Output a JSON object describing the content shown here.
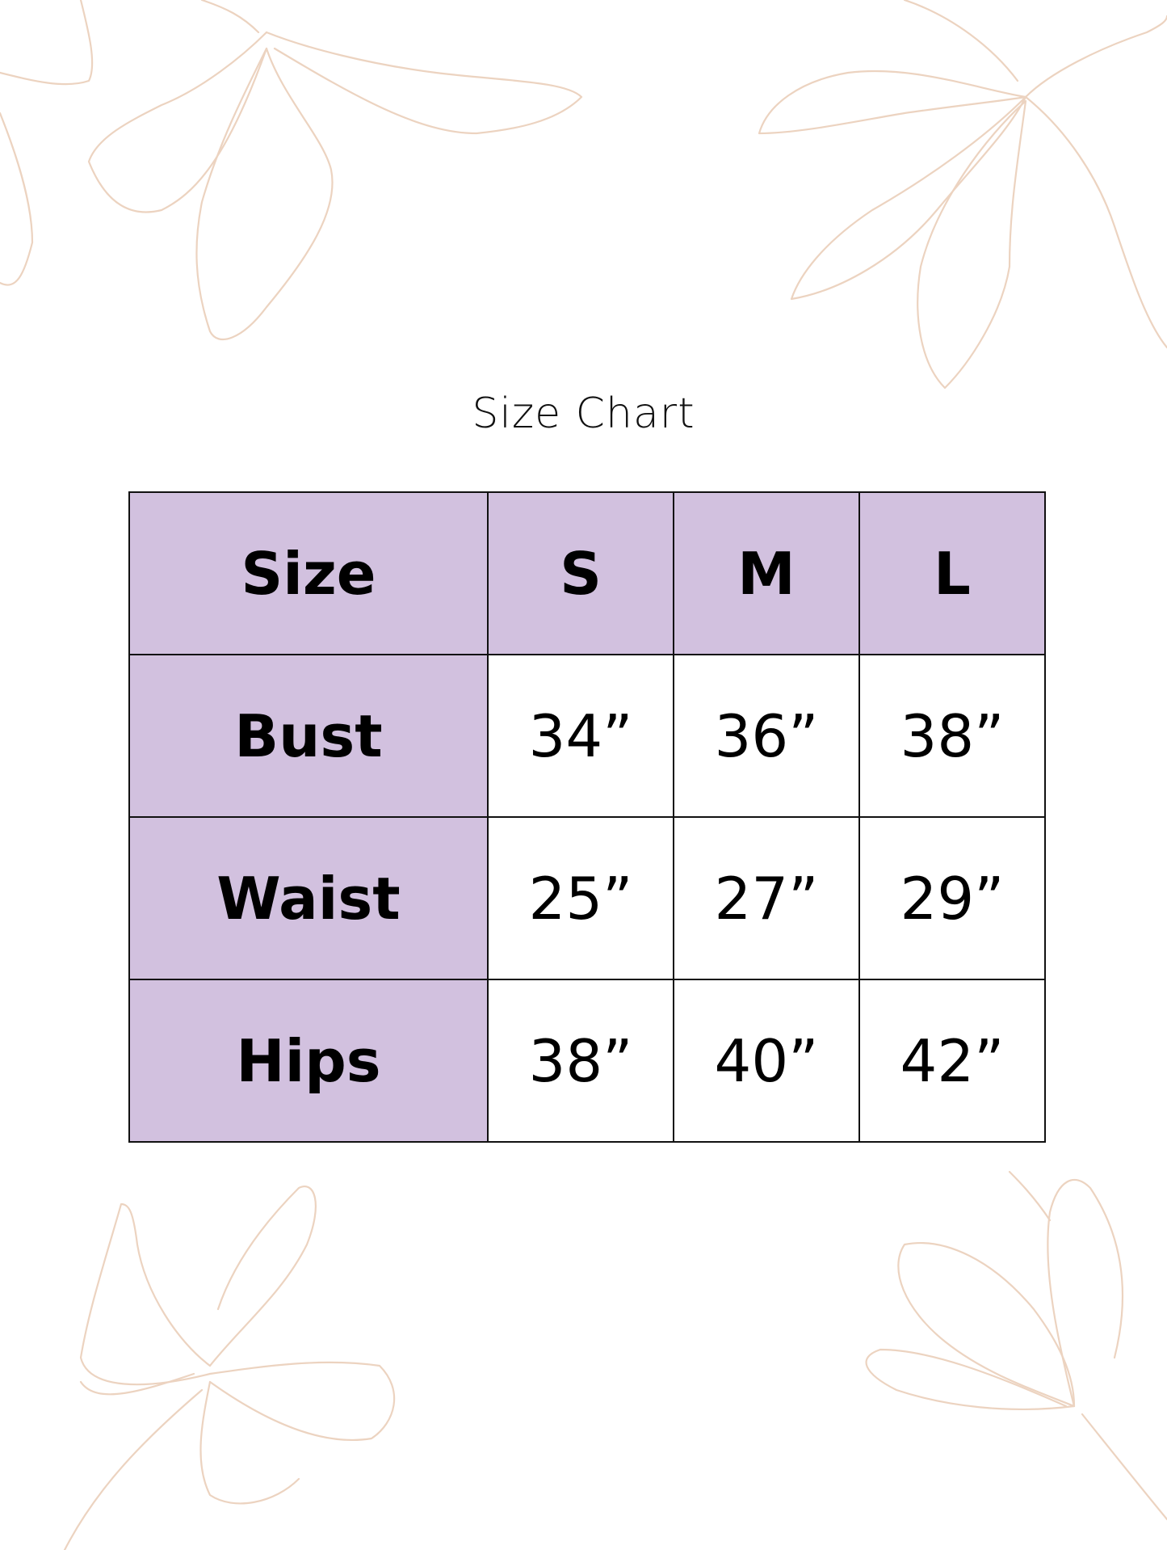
{
  "title": "Size Chart",
  "colors": {
    "header_fill": "#d2c1df",
    "border": "#111111",
    "floral_outline": "#ecd3c0"
  },
  "decoration": "floral-line-art",
  "table": {
    "headers": [
      "Size",
      "S",
      "M",
      "L"
    ],
    "rows": [
      {
        "label": "Bust",
        "values": [
          "34”",
          "36”",
          "38”"
        ]
      },
      {
        "label": "Waist",
        "values": [
          "25”",
          "27”",
          "29”"
        ]
      },
      {
        "label": "Hips",
        "values": [
          "38”",
          "40”",
          "42”"
        ]
      }
    ]
  }
}
